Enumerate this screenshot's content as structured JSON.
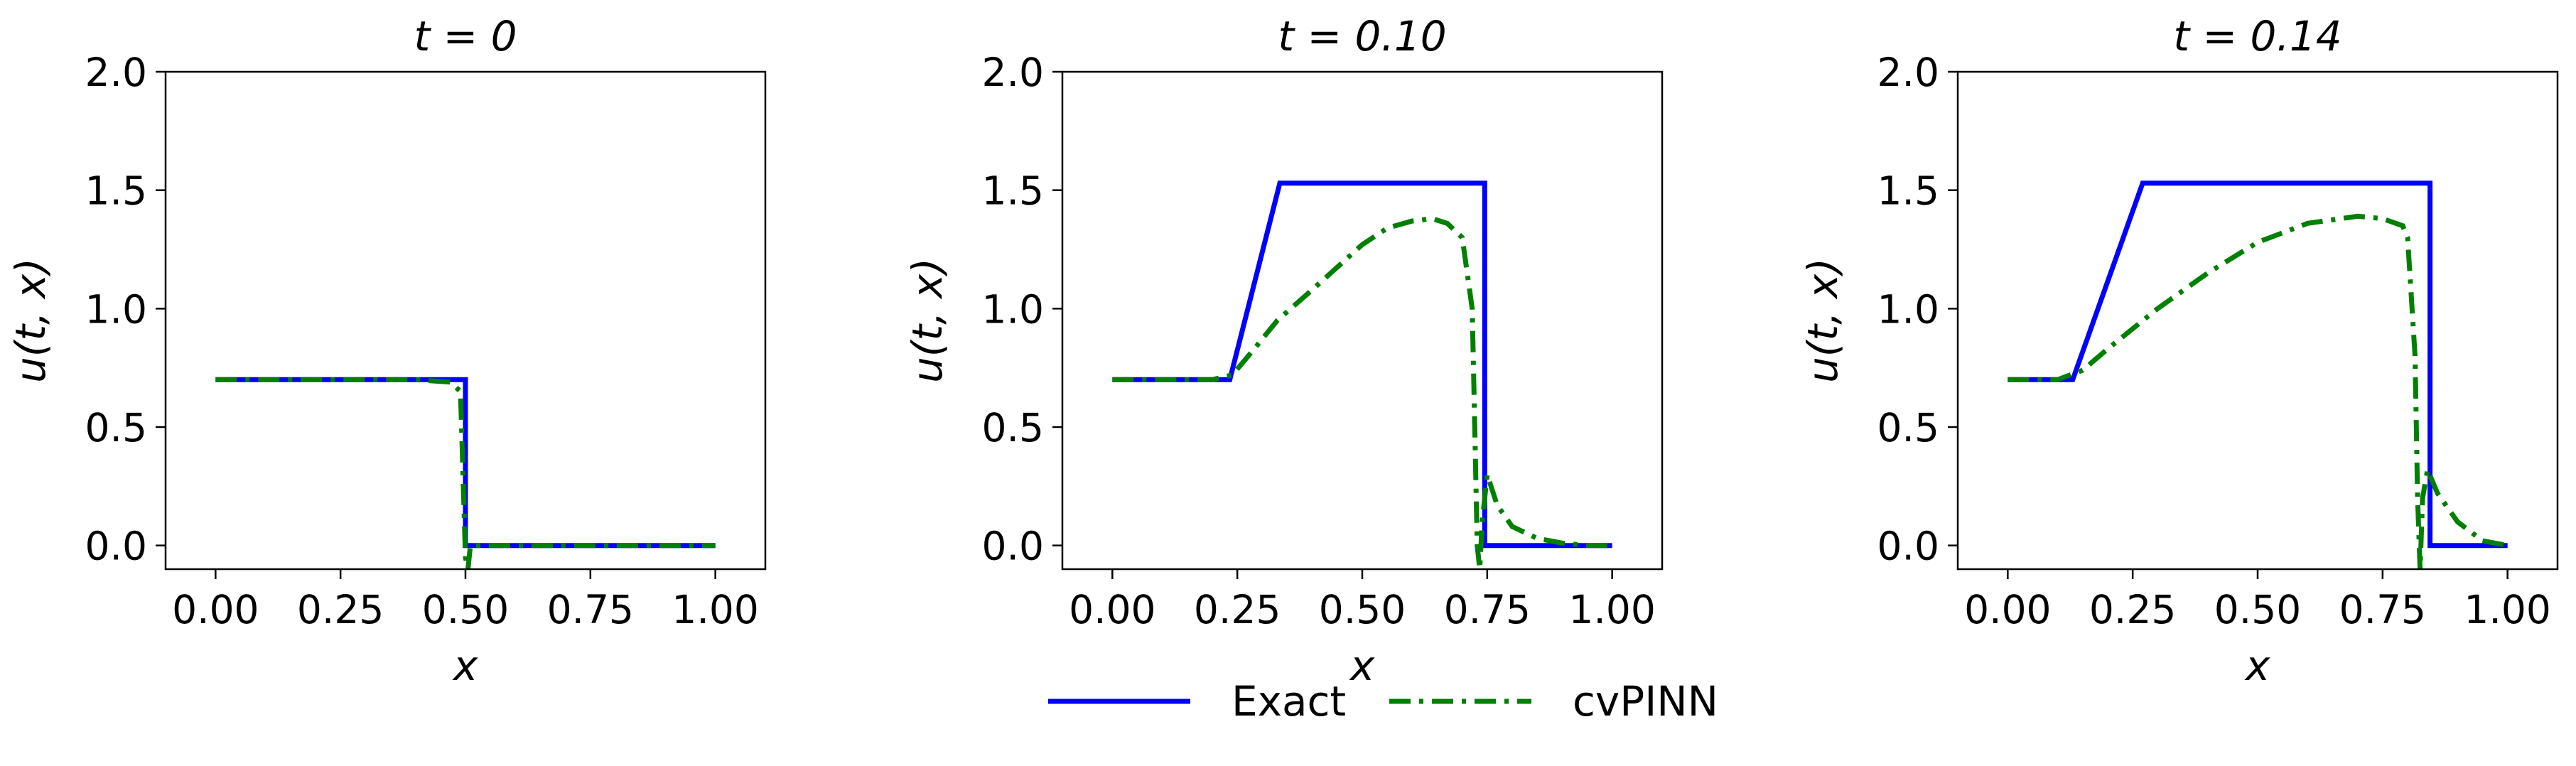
{
  "figure": {
    "legend": {
      "placement": "bottom-center",
      "entries": [
        {
          "label": "Exact",
          "color": "#0000ff",
          "style": "solid"
        },
        {
          "label": "cvPINN",
          "color": "#008000",
          "style": "dashdot"
        }
      ]
    }
  },
  "chart_data": [
    {
      "type": "line",
      "title": "t = 0",
      "xlabel": "x",
      "ylabel": "u(t, x)",
      "xlim": [
        -0.1,
        1.1
      ],
      "ylim": [
        -0.1,
        2.0
      ],
      "xticks": [
        0.0,
        0.25,
        0.5,
        0.75,
        1.0
      ],
      "xtick_labels": [
        "0.00",
        "0.25",
        "0.50",
        "0.75",
        "1.00"
      ],
      "yticks": [
        0.0,
        0.5,
        1.0,
        1.5,
        2.0
      ],
      "ytick_labels": [
        "0.0",
        "0.5",
        "1.0",
        "1.5",
        "2.0"
      ],
      "grid": false,
      "series": [
        {
          "name": "Exact",
          "color": "#0000ff",
          "style": "solid",
          "x": [
            0.0,
            0.5,
            0.5,
            1.0
          ],
          "y": [
            0.7,
            0.7,
            0.0,
            0.0
          ]
        },
        {
          "name": "cvPINN",
          "color": "#008000",
          "style": "dashdot",
          "x": [
            0.0,
            0.1,
            0.2,
            0.3,
            0.4,
            0.47,
            0.49,
            0.495,
            0.5,
            0.505,
            0.51,
            0.52,
            0.6,
            0.7,
            0.8,
            0.9,
            1.0
          ],
          "y": [
            0.7,
            0.7,
            0.7,
            0.7,
            0.7,
            0.69,
            0.65,
            0.3,
            -0.05,
            -0.1,
            0.0,
            0.0,
            0.0,
            0.0,
            0.0,
            0.0,
            0.0
          ]
        }
      ]
    },
    {
      "type": "line",
      "title": "t = 0.10",
      "xlabel": "x",
      "ylabel": "u(t, x)",
      "xlim": [
        -0.1,
        1.1
      ],
      "ylim": [
        -0.1,
        2.0
      ],
      "xticks": [
        0.0,
        0.25,
        0.5,
        0.75,
        1.0
      ],
      "xtick_labels": [
        "0.00",
        "0.25",
        "0.50",
        "0.75",
        "1.00"
      ],
      "yticks": [
        0.0,
        0.5,
        1.0,
        1.5,
        2.0
      ],
      "ytick_labels": [
        "0.0",
        "0.5",
        "1.0",
        "1.5",
        "2.0"
      ],
      "grid": false,
      "series": [
        {
          "name": "Exact",
          "color": "#0000ff",
          "style": "solid",
          "x": [
            0.0,
            0.235,
            0.335,
            0.745,
            0.745,
            1.0
          ],
          "y": [
            0.7,
            0.7,
            1.53,
            1.53,
            0.0,
            0.0
          ]
        },
        {
          "name": "cvPINN",
          "color": "#008000",
          "style": "dashdot",
          "x": [
            0.0,
            0.2,
            0.24,
            0.28,
            0.33,
            0.4,
            0.5,
            0.55,
            0.6,
            0.64,
            0.67,
            0.7,
            0.72,
            0.725,
            0.73,
            0.735,
            0.74,
            0.75,
            0.77,
            0.8,
            0.85,
            0.9,
            0.95,
            1.0
          ],
          "y": [
            0.7,
            0.7,
            0.72,
            0.82,
            0.95,
            1.08,
            1.27,
            1.34,
            1.37,
            1.38,
            1.36,
            1.3,
            1.0,
            0.5,
            0.0,
            -0.1,
            0.1,
            0.3,
            0.17,
            0.08,
            0.03,
            0.01,
            0.0,
            0.0
          ]
        }
      ]
    },
    {
      "type": "line",
      "title": "t = 0.14",
      "xlabel": "x",
      "ylabel": "u(t, x)",
      "xlim": [
        -0.1,
        1.1
      ],
      "ylim": [
        -0.1,
        2.0
      ],
      "xticks": [
        0.0,
        0.25,
        0.5,
        0.75,
        1.0
      ],
      "xtick_labels": [
        "0.00",
        "0.25",
        "0.50",
        "0.75",
        "1.00"
      ],
      "yticks": [
        0.0,
        0.5,
        1.0,
        1.5,
        2.0
      ],
      "ytick_labels": [
        "0.0",
        "0.5",
        "1.0",
        "1.5",
        "2.0"
      ],
      "grid": false,
      "series": [
        {
          "name": "Exact",
          "color": "#0000ff",
          "style": "solid",
          "x": [
            0.0,
            0.13,
            0.27,
            0.845,
            0.845,
            1.0
          ],
          "y": [
            0.7,
            0.7,
            1.53,
            1.53,
            0.0,
            0.0
          ]
        },
        {
          "name": "cvPINN",
          "color": "#008000",
          "style": "dashdot",
          "x": [
            0.0,
            0.1,
            0.15,
            0.2,
            0.3,
            0.4,
            0.5,
            0.6,
            0.7,
            0.75,
            0.79,
            0.8,
            0.815,
            0.82,
            0.825,
            0.83,
            0.84,
            0.86,
            0.9,
            0.95,
            1.0
          ],
          "y": [
            0.7,
            0.7,
            0.74,
            0.83,
            1.0,
            1.15,
            1.28,
            1.36,
            1.39,
            1.38,
            1.35,
            1.3,
            0.8,
            0.2,
            -0.1,
            0.2,
            0.32,
            0.22,
            0.1,
            0.02,
            0.0
          ]
        }
      ]
    }
  ]
}
